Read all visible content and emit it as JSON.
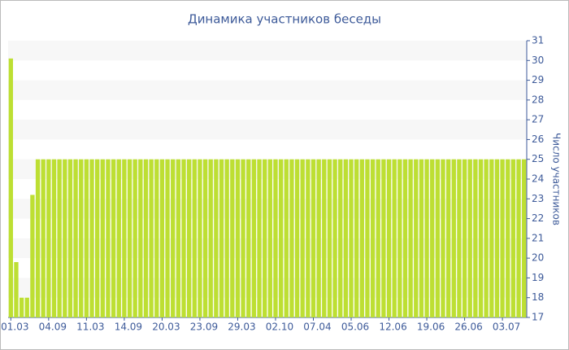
{
  "chart_data": {
    "type": "bar",
    "title": "Динамика участников беседы",
    "y_label": "Число участников",
    "categories": [
      "01.03",
      null,
      null,
      null,
      null,
      null,
      null,
      "04.09",
      null,
      null,
      null,
      null,
      null,
      null,
      "11.03",
      null,
      null,
      null,
      null,
      null,
      null,
      "14.09",
      null,
      null,
      null,
      null,
      null,
      null,
      "20.03",
      null,
      null,
      null,
      null,
      null,
      null,
      "23.09",
      null,
      null,
      null,
      null,
      null,
      null,
      "29.03",
      null,
      null,
      null,
      null,
      null,
      null,
      "02.10",
      null,
      null,
      null,
      null,
      null,
      null,
      "07.04",
      null,
      null,
      null,
      null,
      null,
      null,
      "05.06",
      null,
      null,
      null,
      null,
      null,
      null,
      "12.06",
      null,
      null,
      null,
      null,
      null,
      null,
      "19.06",
      null,
      null,
      null,
      null,
      null,
      null,
      "26.06",
      null,
      null,
      null,
      null,
      null,
      null,
      "03.07",
      null,
      null,
      null,
      null
    ],
    "values": [
      30.1,
      19.8,
      18,
      18,
      23.2,
      25,
      25,
      25,
      25,
      25,
      25,
      25,
      25,
      25,
      25,
      25,
      25,
      25,
      25,
      25,
      25,
      25,
      25,
      25,
      25,
      25,
      25,
      25,
      25,
      25,
      25,
      25,
      25,
      25,
      25,
      25,
      25,
      25,
      25,
      25,
      25,
      25,
      25,
      25,
      25,
      25,
      25,
      25,
      25,
      25,
      25,
      25,
      25,
      25,
      25,
      25,
      25,
      25,
      25,
      25,
      25,
      25,
      25,
      25,
      25,
      25,
      25,
      25,
      25,
      25,
      25,
      25,
      25,
      25,
      25,
      25,
      25,
      25,
      25,
      25,
      25,
      25,
      25,
      25,
      25,
      25,
      25,
      25,
      25,
      25,
      25,
      25,
      25,
      25,
      25,
      25
    ],
    "color": "#bddf33",
    "ylim": [
      17,
      31
    ],
    "yticks": [
      17,
      18,
      19,
      20,
      21,
      22,
      23,
      24,
      25,
      26,
      27,
      28,
      29,
      30,
      31
    ],
    "grid": true
  }
}
